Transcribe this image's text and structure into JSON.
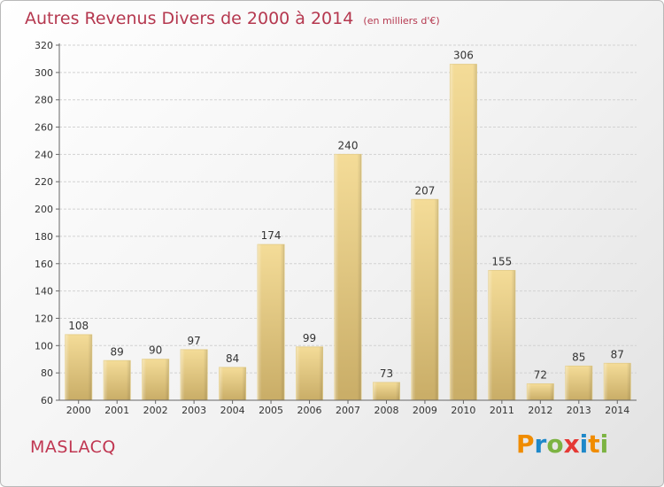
{
  "header": {
    "title": "Autres Revenus Divers de 2000 à 2014",
    "unit": "(en milliers d'€)"
  },
  "footer": {
    "town": "MASLACQ",
    "logo": [
      "P",
      "r",
      "o",
      "x",
      "i",
      "t",
      "i"
    ],
    "logo_colors": [
      "#f08c00",
      "#1e88c9",
      "#7cb342",
      "#e53935",
      "#1e88c9",
      "#f08c00",
      "#7cb342"
    ]
  },
  "chart_data": {
    "type": "bar",
    "categories": [
      "2000",
      "2001",
      "2002",
      "2003",
      "2004",
      "2005",
      "2006",
      "2007",
      "2008",
      "2009",
      "2010",
      "2011",
      "2012",
      "2013",
      "2014"
    ],
    "values": [
      108,
      89,
      90,
      97,
      84,
      174,
      99,
      240,
      73,
      207,
      306,
      155,
      72,
      85,
      87
    ],
    "ylim": [
      60,
      320
    ],
    "yticks": [
      60,
      80,
      100,
      120,
      140,
      160,
      180,
      200,
      220,
      240,
      260,
      280,
      300,
      320
    ],
    "grid": true,
    "bar_color_top": "#f4dc98",
    "bar_color_bottom": "#c9ad67"
  }
}
